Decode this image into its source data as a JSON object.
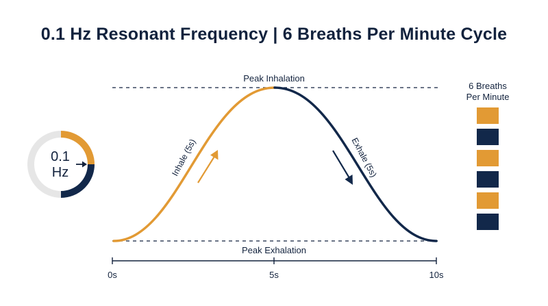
{
  "title": "0.1 Hz Resonant Frequency | 6 Breaths Per Minute Cycle",
  "frequency": {
    "value": "0.1",
    "unit": "Hz"
  },
  "wave": {
    "peak_label": "Peak Inhalation",
    "trough_label": "Peak Exhalation",
    "inhale_label": "Inhale (5s)",
    "exhale_label": "Exhale (5s)"
  },
  "time_axis": {
    "ticks": [
      "0s",
      "5s",
      "10s"
    ]
  },
  "legend": {
    "title_line1": "6 Breaths",
    "title_line2": "Per Minute",
    "boxes": [
      "inhale",
      "exhale",
      "inhale",
      "exhale",
      "inhale",
      "exhale"
    ]
  },
  "colors": {
    "inhale": "#e29a34",
    "exhale": "#12284a",
    "ring_track": "#e6e6e6",
    "text": "#12223d"
  }
}
